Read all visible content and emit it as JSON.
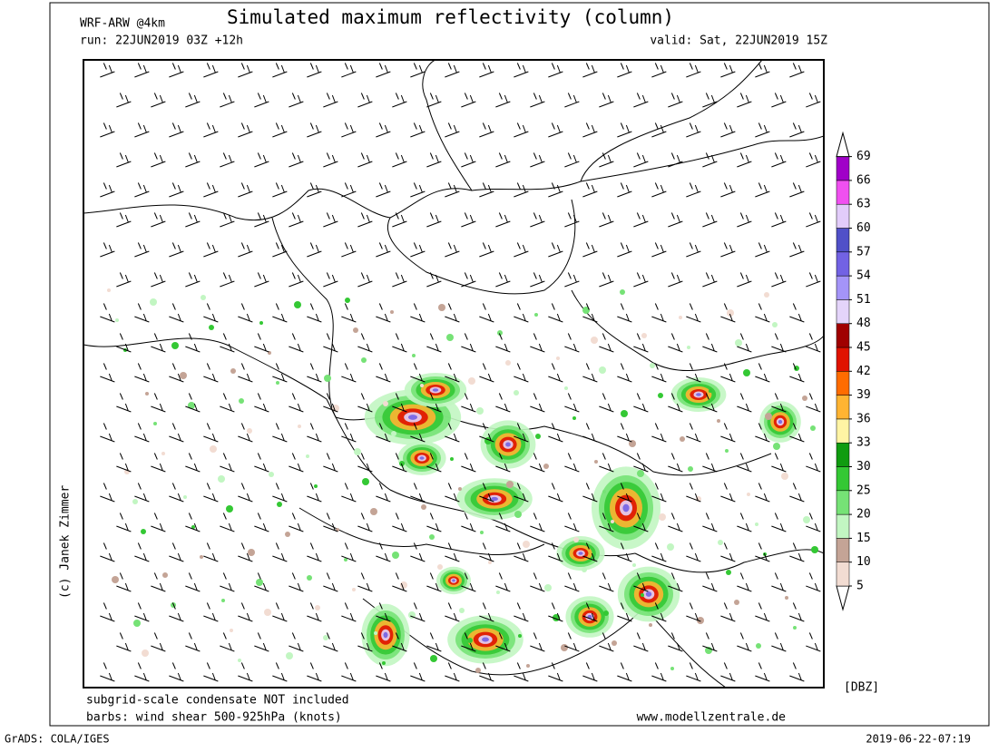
{
  "header": {
    "model": "WRF-ARW @4km",
    "title": "Simulated maximum reflectivity (column)",
    "run": "run: 22JUN2019 03Z +12h",
    "valid": "valid: Sat, 22JUN2019 15Z"
  },
  "credit": "(c) Janek Zimmer",
  "footer": {
    "note1": "subgrid-scale condensate NOT included",
    "note2": "barbs: wind shear 500-925hPa (knots)",
    "site": "www.modellzentrale.de",
    "grads": "GrADS: COLA/IGES",
    "timestamp": "2019-06-22-07:19"
  },
  "colorbar": {
    "unit": "[DBZ]",
    "levels": [
      5,
      10,
      15,
      20,
      25,
      30,
      33,
      36,
      39,
      42,
      45,
      48,
      51,
      54,
      57,
      60,
      63,
      66,
      69
    ],
    "colors": [
      "#ffffff",
      "#f2dcd2",
      "#c4a496",
      "#c2f6c2",
      "#76e276",
      "#34c834",
      "#109c10",
      "#fff4a4",
      "#ffb432",
      "#ff6c00",
      "#e01200",
      "#a00000",
      "#e4d4fa",
      "#a494f8",
      "#7262e4",
      "#5050c8",
      "#e2ccfa",
      "#f050f0",
      "#a000c8",
      "#ffffff"
    ]
  }
}
